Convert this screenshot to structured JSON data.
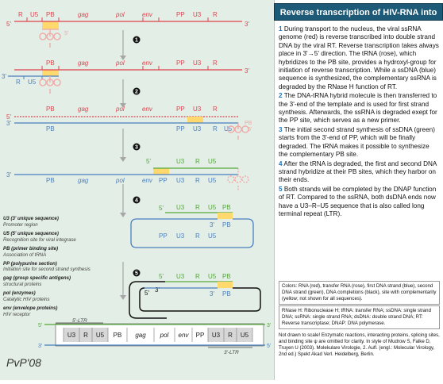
{
  "title": "Reverse transcription of HIV-RNA into dsDNA",
  "steps": [
    {
      "num": "1",
      "text": "During transport to the nucleus, the viral ssRNA genome (red) is reverse transcribed into double strand DNA by the viral RT. Reverse transcription takes always place in 3'→5' direction. The tRNA (rose), which hybridizes to the PB site, provides a hydroxyl-group for initiation of reverse transcription. While a ssDNA (blue) sequence is synthesized, the complementary ssRNA is degraded by the RNase H function of RT."
    },
    {
      "num": "2",
      "text": "The DNA-tRNA hybrid molecule is then transferred to the 3'-end of the template and is used for first strand synthesis. Afterwards, the ssRNA is degraded exept for the PP site, which serves as a new primer."
    },
    {
      "num": "3",
      "text": "The initial second strand synthesis of ssDNA (green) starts from the 3'-end of PP, which will be finally degraded. The tRNA makes it possible to synthesize the complementary PB site."
    },
    {
      "num": "4",
      "text": "After the tRNA is degraded, the first and second DNA strand hybridize at their PB sites, which they harbor on their ends."
    },
    {
      "num": "5",
      "text": "Both strands will be completed by the DNAP function of RT. Compared to the ssRNA, both dsDNA ends now have a U3–R–U5 sequence that is also called long terminal repeat (LTR)."
    }
  ],
  "colors_box": "Colors: RNA (red), transfer RNA (rose), first DNA strand (blue), second DNA strand (green), DNA completions (black), site with complementarity (yellow; not shown for all sequences).",
  "abbr_box": "RNase H: Ribonuclease H; tRNA: transfer RNA; ssDNA: single strand DNA; ssRNA: single strand RNA; dsDNA: double strand DNA; RT: Reverse transcriptase; DNAP: DNA polymerase.",
  "note": "Not drawn to scale! Enzymatic reactions, interacting proteins, splicing sites, and binding site ψ are omitted for clarity. In style of Mudrow S, Falke D, Truyen U (2003). Molekulare Virologie, 2. Aufl. (engl.: Molecular Virology, 2nd ed.) Spekt Akad Verl. Heidelberg, Berlin.",
  "legend": [
    {
      "abbr": "U3 (3' unique sequence)",
      "expl": "Promoter region"
    },
    {
      "abbr": "U5 (5' unique sequence)",
      "expl": "Recognition site for viral integrase"
    },
    {
      "abbr": "PB (primer binding site)",
      "expl": "Association of tRNA"
    },
    {
      "abbr": "PP (polypurine section)",
      "expl": "Initiation site for second strand synthesis"
    },
    {
      "abbr": "gag (group specific antigens)",
      "expl": "structural proteins"
    },
    {
      "abbr": "pol (enzymes)",
      "expl": "Catalytic HIV proteins"
    },
    {
      "abbr": "env (envelope proteins)",
      "expl": "HIV receptor"
    }
  ],
  "step_numbers": [
    "1",
    "2",
    "3",
    "4",
    "5"
  ],
  "labels": {
    "r": "R",
    "u5": "U5",
    "u3": "U3",
    "pb": "PB",
    "pp": "PP",
    "gag": "gag",
    "pol": "pol",
    "env": "env",
    "five": "5'",
    "three": "3'",
    "ltr5": "5'-LTR",
    "ltr3": "3'-LTR",
    "signature": "PvP'08"
  },
  "palette": {
    "rna": "#e0434e",
    "trna": "#f0a7a4",
    "dna1": "#4a7fc0",
    "dna2": "#56a83b",
    "yellow": "#ffd86e",
    "title_bg": "#1d5a78",
    "panel_bg": "#e3eee6"
  }
}
